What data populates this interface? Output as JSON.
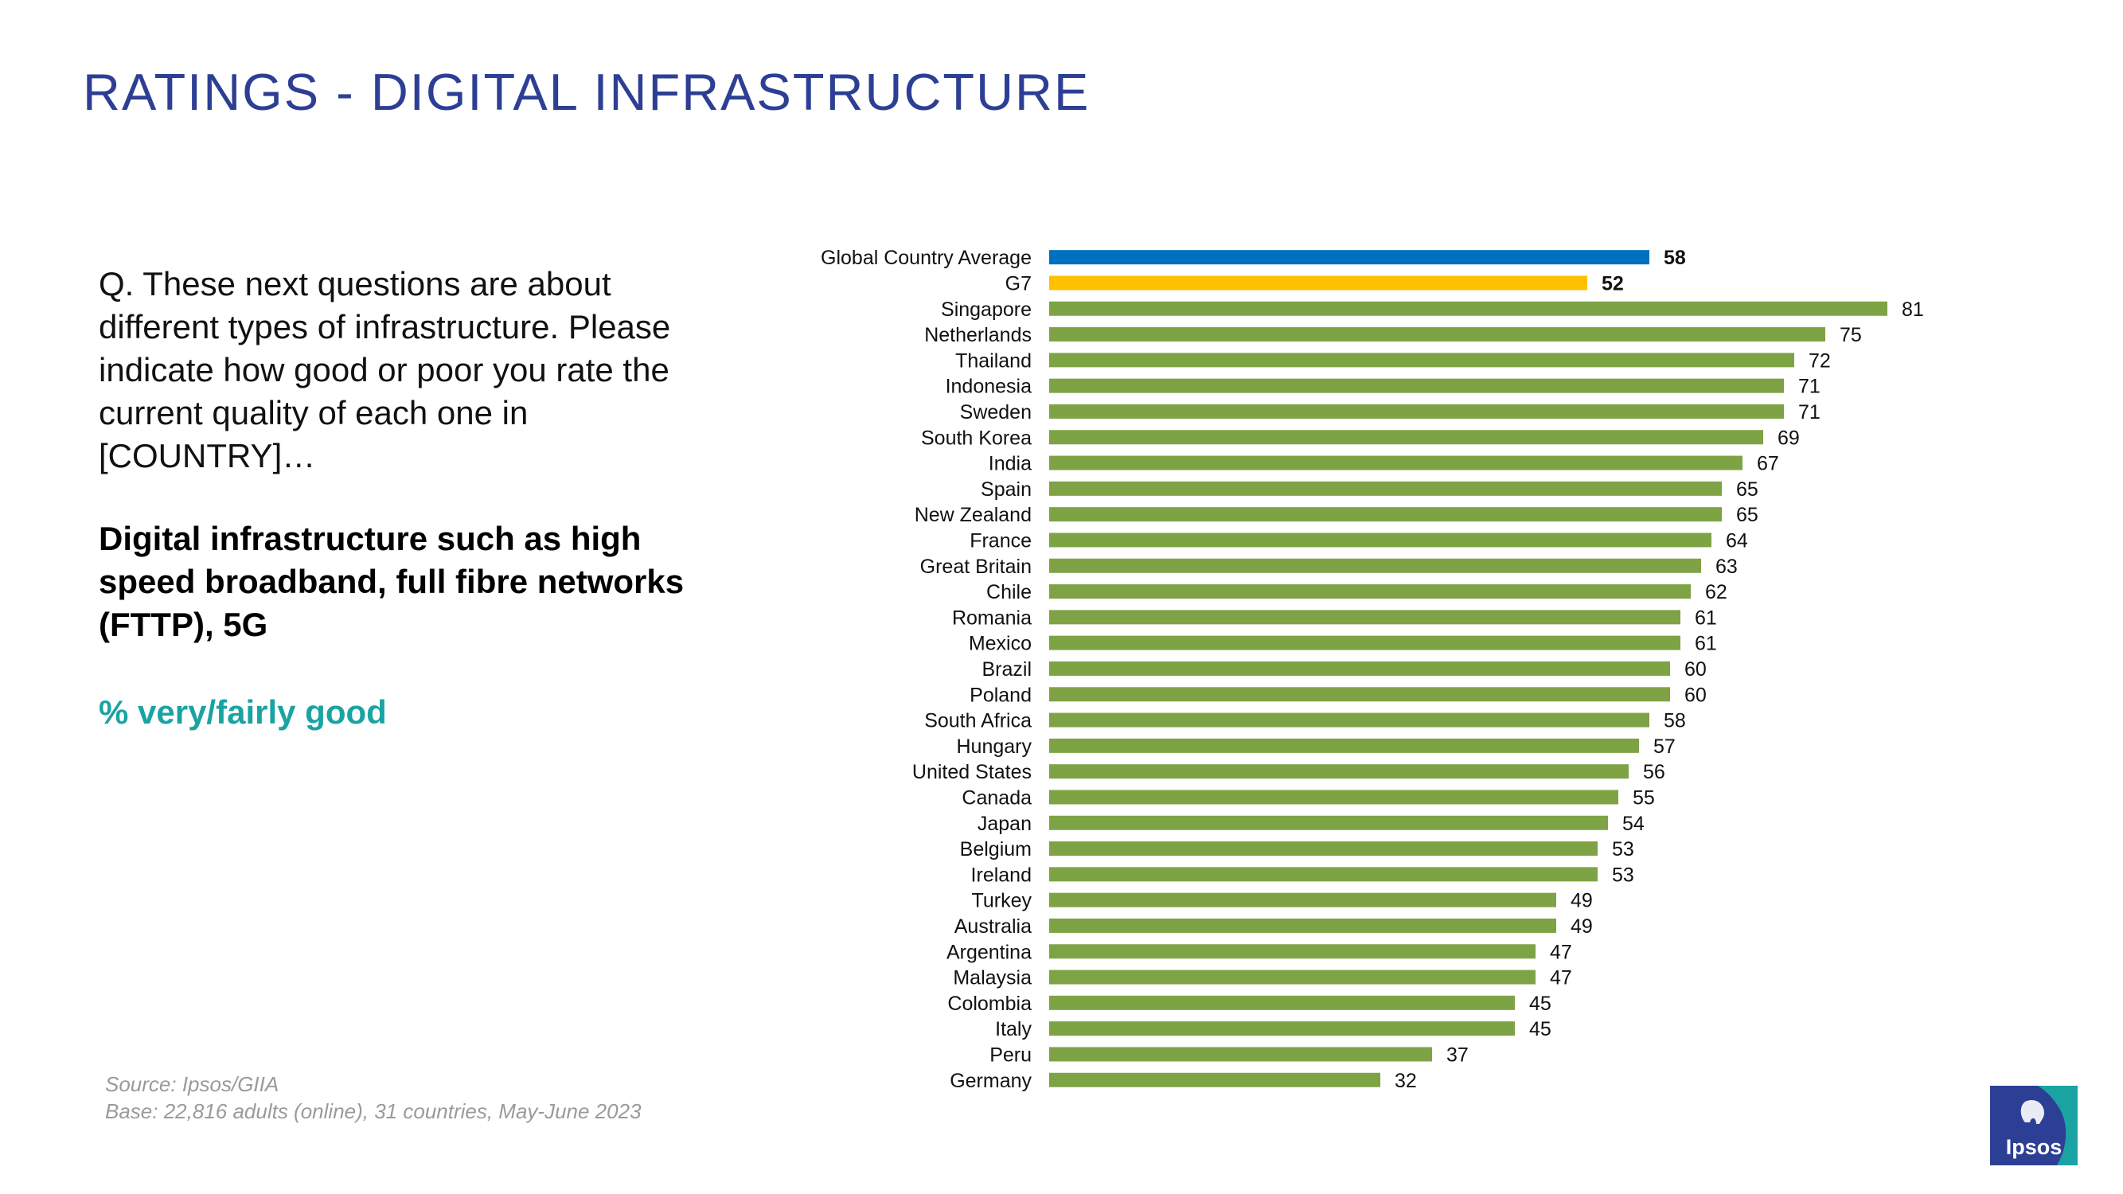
{
  "title": "RATINGS - DIGITAL INFRASTRUCTURE",
  "question": "Q. These next questions are about different types of infrastructure. Please indicate how good or poor you rate the current quality of each one in [COUNTRY]…",
  "infrastructure": "Digital infrastructure such as high speed broadband, full fibre networks (FTTP), 5G",
  "metric": "% very/fairly good",
  "source": "Source: Ipsos/GIIA",
  "base": "Base: 22,816 adults (online), 31 countries, May-June 2023",
  "logo_text": "Ipsos",
  "colors": {
    "title": "#2d3f94",
    "global_average_bar": "#0070c0",
    "g7_bar": "#ffc000",
    "country_bar": "#7ea345",
    "metric_text": "#1aa3a3",
    "logo_background": "#2d3f94",
    "logo_teal": "#1aa3a3"
  },
  "chart_data": {
    "type": "bar",
    "orientation": "horizontal",
    "title": "",
    "xlabel": "",
    "ylabel": "",
    "xlim": [
      0,
      100
    ],
    "grid": false,
    "categories": [
      "Global Country Average",
      "G7",
      "Singapore",
      "Netherlands",
      "Thailand",
      "Indonesia",
      "Sweden",
      "South Korea",
      "India",
      "Spain",
      "New Zealand",
      "France",
      "Great Britain",
      "Chile",
      "Romania",
      "Mexico",
      "Brazil",
      "Poland",
      "South Africa",
      "Hungary",
      "United States",
      "Canada",
      "Japan",
      "Belgium",
      "Ireland",
      "Turkey",
      "Australia",
      "Argentina",
      "Malaysia",
      "Colombia",
      "Italy",
      "Peru",
      "Germany"
    ],
    "values": [
      58,
      52,
      81,
      75,
      72,
      71,
      71,
      69,
      67,
      65,
      65,
      64,
      63,
      62,
      61,
      61,
      60,
      60,
      58,
      57,
      56,
      55,
      54,
      53,
      53,
      49,
      49,
      47,
      47,
      45,
      45,
      37,
      32
    ],
    "highlighted": [
      "Global Country Average",
      "G7"
    ]
  }
}
